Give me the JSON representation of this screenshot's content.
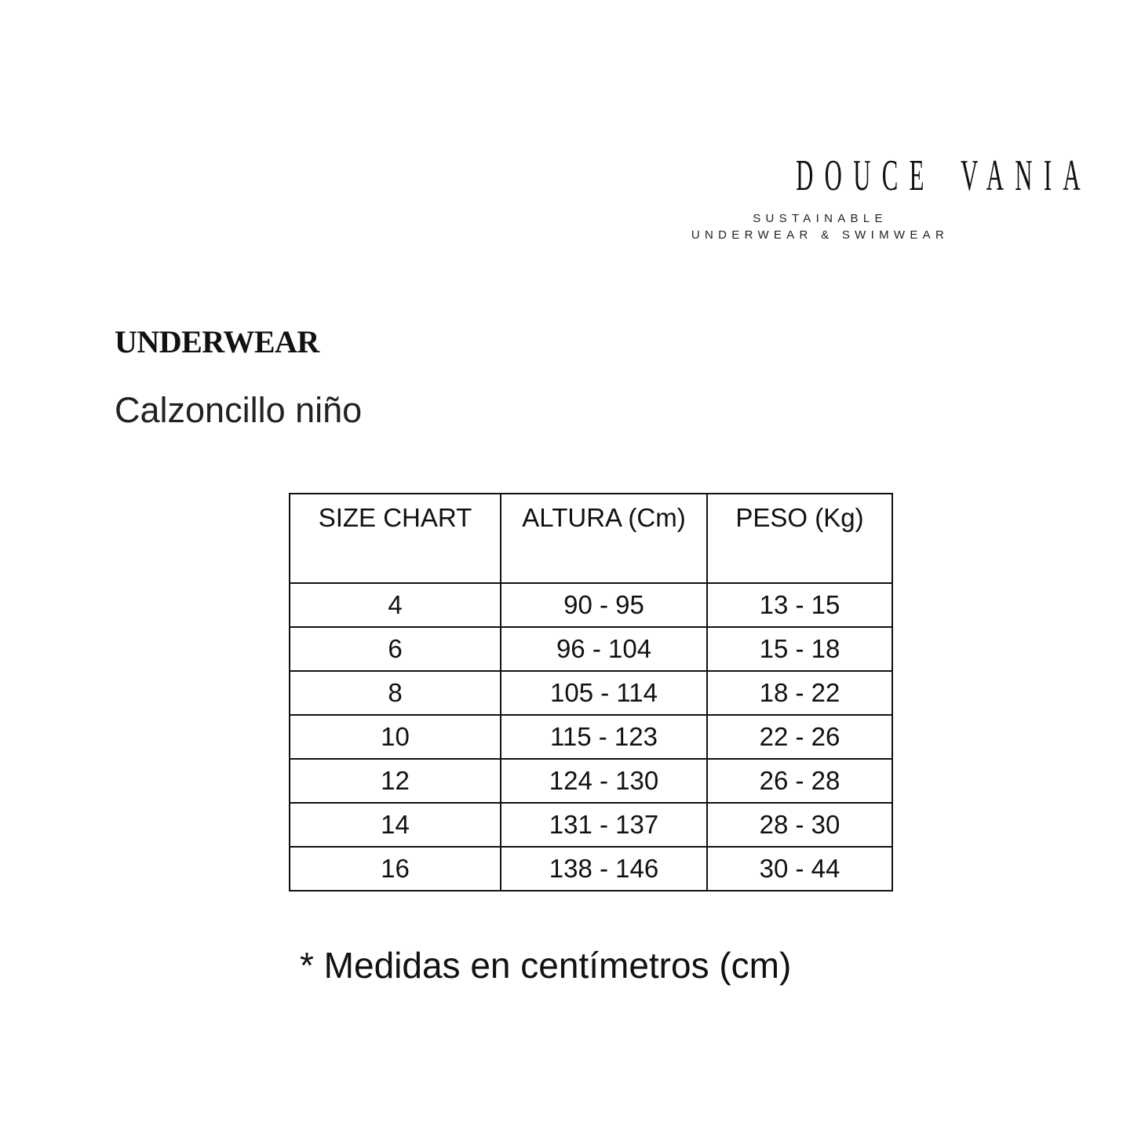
{
  "logo": {
    "brand": "DOUCE VANIA",
    "tagline_1": "SUSTAINABLE",
    "tagline_2": "UNDERWEAR & SWIMWEAR"
  },
  "section_title": "UNDERWEAR",
  "subtitle": "Calzoncillo niño",
  "table": {
    "headers": [
      "SIZE CHART",
      "ALTURA (Cm)",
      "PESO (Kg)"
    ],
    "rows": [
      [
        "4",
        "90 - 95",
        "13 - 15"
      ],
      [
        "6",
        "96 - 104",
        "15 - 18"
      ],
      [
        "8",
        "105 - 114",
        "18 - 22"
      ],
      [
        "10",
        "115 - 123",
        "22 - 26"
      ],
      [
        "12",
        "124 - 130",
        "26 - 28"
      ],
      [
        "14",
        "131 - 137",
        "28 - 30"
      ],
      [
        "16",
        "138 - 146",
        "30 - 44"
      ]
    ]
  },
  "note": "* Medidas en centímetros (cm)"
}
